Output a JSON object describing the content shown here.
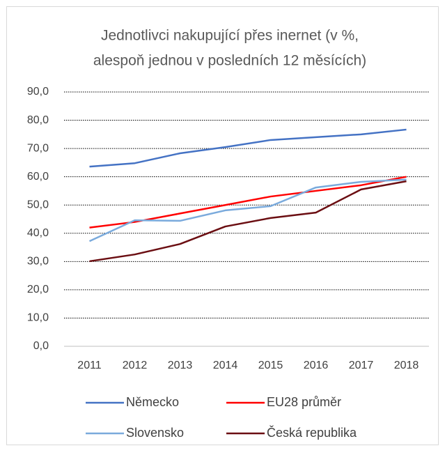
{
  "chart_data": {
    "type": "line",
    "title": [
      "Jednotlivci nakupující přes inernet (v %,",
      "alespoň jednou v posledních 12 měsících)"
    ],
    "categories": [
      "2011",
      "2012",
      "2013",
      "2014",
      "2015",
      "2016",
      "2017",
      "2018"
    ],
    "series": [
      {
        "name": "Německo",
        "color": "#4472c4",
        "values": [
          63.6,
          64.8,
          68.3,
          70.5,
          73.0,
          74.0,
          75.0,
          76.7
        ]
      },
      {
        "name": "EU28 průměr",
        "color": "#ff0000",
        "values": [
          42,
          44,
          47,
          50,
          53,
          55,
          57,
          60
        ]
      },
      {
        "name": "Slovensko",
        "color": "#7aaadc",
        "values": [
          37.2,
          44.6,
          44.4,
          48.1,
          49.6,
          56.2,
          58.2,
          59.0
        ]
      },
      {
        "name": "Česká republika",
        "color": "#6b0e12",
        "values": [
          30.1,
          32.5,
          36.2,
          42.4,
          45.4,
          47.3,
          55.5,
          58.4
        ]
      }
    ],
    "ylim": [
      0,
      90
    ],
    "yticks": [
      {
        "value": 0,
        "label": "0,0"
      },
      {
        "value": 10,
        "label": "10,0"
      },
      {
        "value": 20,
        "label": "20,0"
      },
      {
        "value": 30,
        "label": "30,0"
      },
      {
        "value": 40,
        "label": "40,0"
      },
      {
        "value": 50,
        "label": "50,0"
      },
      {
        "value": 60,
        "label": "60,0"
      },
      {
        "value": 70,
        "label": "70,0"
      },
      {
        "value": 80,
        "label": "80,0"
      },
      {
        "value": 90,
        "label": "90,0"
      }
    ],
    "grid": true,
    "legend": "bottom"
  }
}
